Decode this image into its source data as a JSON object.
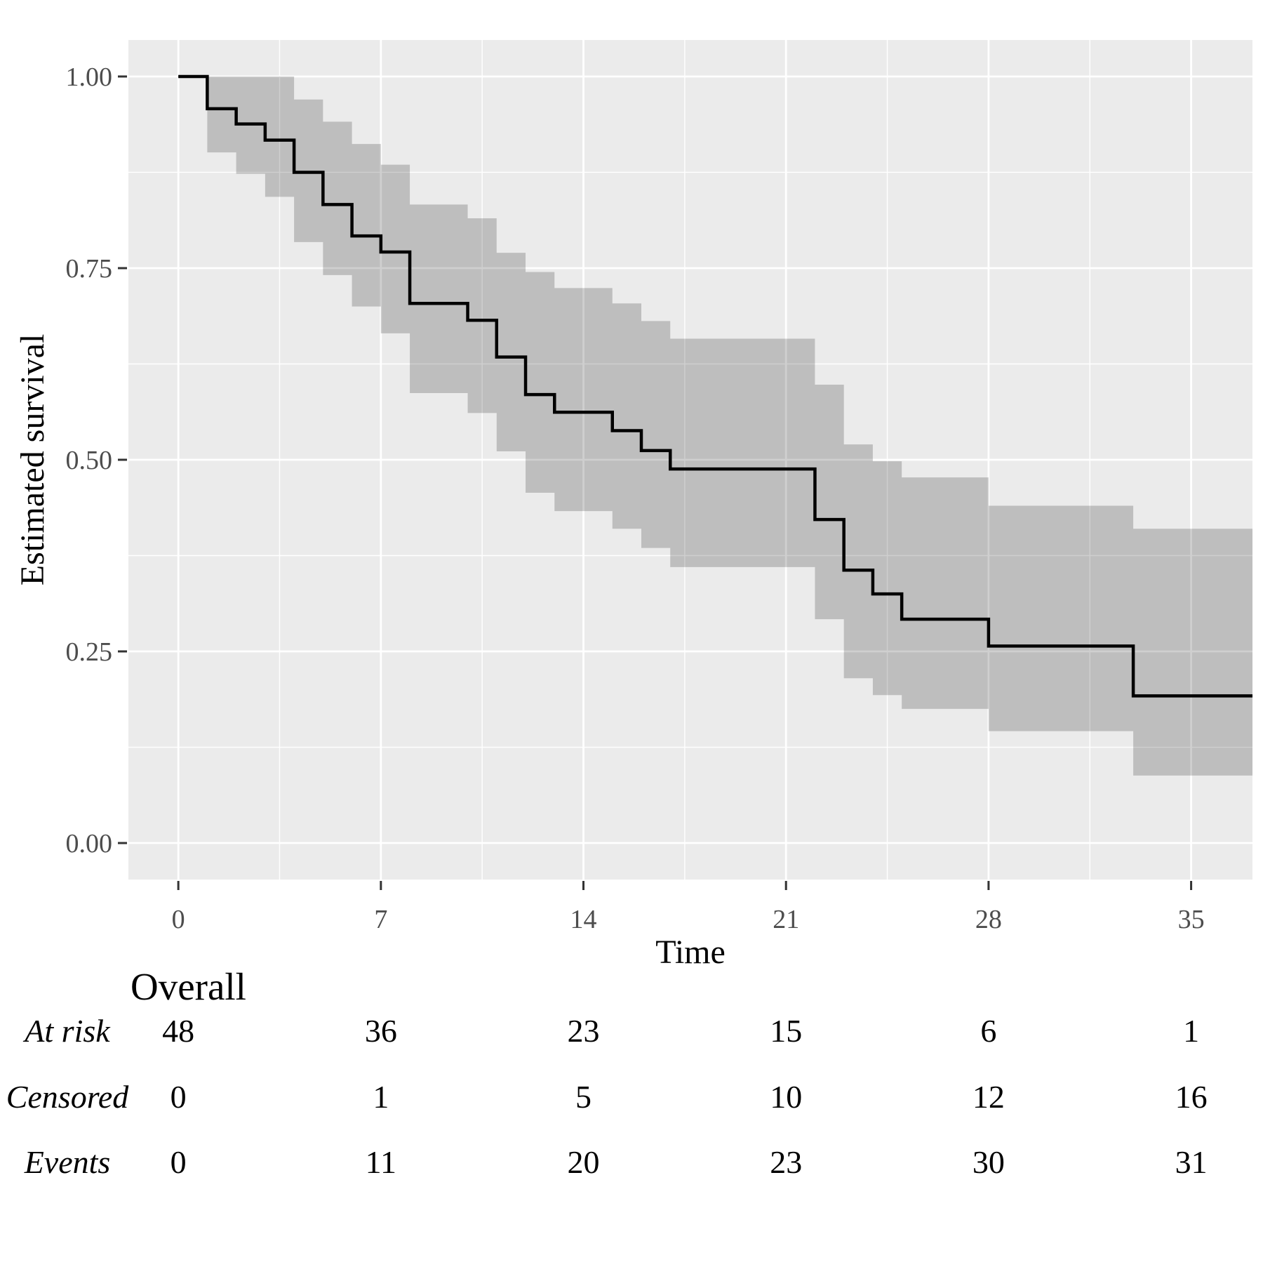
{
  "chart_data": {
    "type": "line",
    "subtype": "kaplan-meier-step",
    "title": "",
    "xlabel": "Time",
    "ylabel": "Estimated survival",
    "xlim": [
      -1.725,
      37.12
    ],
    "ylim": [
      -0.0476,
      1.0476
    ],
    "x_ticks": [
      0,
      7,
      14,
      21,
      28,
      35
    ],
    "x_tick_labels": [
      "0",
      "7",
      "14",
      "21",
      "28",
      "35"
    ],
    "y_ticks": [
      1.0,
      0.75,
      0.5,
      0.25,
      0.0
    ],
    "y_tick_labels": [
      "1.00",
      "0.75",
      "0.50",
      "0.25",
      "0.00"
    ],
    "x_minor_gridlines": [
      3.5,
      10.5,
      17.5,
      24.5,
      31.5
    ],
    "y_minor_gridlines": [
      0.875,
      0.625,
      0.375,
      0.125
    ],
    "grid": "on",
    "legend": "none",
    "curve_end_time": 37.12,
    "series": [
      {
        "name": "Overall",
        "steps": [
          {
            "t": 0,
            "s": 1.0,
            "lo": null,
            "hi": null
          },
          {
            "t": 1,
            "s": 0.958,
            "lo": 0.901,
            "hi": 1.0
          },
          {
            "t": 2,
            "s": 0.938,
            "lo": 0.873,
            "hi": 1.0
          },
          {
            "t": 3,
            "s": 0.917,
            "lo": 0.843,
            "hi": 1.0
          },
          {
            "t": 4,
            "s": 0.875,
            "lo": 0.784,
            "hi": 0.97
          },
          {
            "t": 5,
            "s": 0.833,
            "lo": 0.741,
            "hi": 0.941
          },
          {
            "t": 6,
            "s": 0.792,
            "lo": 0.7,
            "hi": 0.912
          },
          {
            "t": 7,
            "s": 0.771,
            "lo": 0.665,
            "hi": 0.885
          },
          {
            "t": 8,
            "s": 0.704,
            "lo": 0.587,
            "hi": 0.833
          },
          {
            "t": 10,
            "s": 0.682,
            "lo": 0.561,
            "hi": 0.815
          },
          {
            "t": 11,
            "s": 0.634,
            "lo": 0.511,
            "hi": 0.77
          },
          {
            "t": 12,
            "s": 0.585,
            "lo": 0.457,
            "hi": 0.745
          },
          {
            "t": 13,
            "s": 0.562,
            "lo": 0.433,
            "hi": 0.724
          },
          {
            "t": 15,
            "s": 0.538,
            "lo": 0.41,
            "hi": 0.704
          },
          {
            "t": 16,
            "s": 0.512,
            "lo": 0.385,
            "hi": 0.681
          },
          {
            "t": 17,
            "s": 0.488,
            "lo": 0.36,
            "hi": 0.658
          },
          {
            "t": 22,
            "s": 0.422,
            "lo": 0.292,
            "hi": 0.598
          },
          {
            "t": 23,
            "s": 0.356,
            "lo": 0.215,
            "hi": 0.52
          },
          {
            "t": 24,
            "s": 0.325,
            "lo": 0.193,
            "hi": 0.498
          },
          {
            "t": 25,
            "s": 0.292,
            "lo": 0.175,
            "hi": 0.477
          },
          {
            "t": 28,
            "s": 0.257,
            "lo": 0.146,
            "hi": 0.44
          },
          {
            "t": 33,
            "s": 0.192,
            "lo": 0.088,
            "hi": 0.41
          }
        ]
      }
    ],
    "colors": {
      "panel_background": "#EBEBEB",
      "gridline": "#FFFFFF",
      "confidence_band": "rgba(0,0,0,0.19)",
      "curve": "#000000",
      "tick_label": "#4D4D4D",
      "tick_mark": "#333333"
    }
  },
  "risk_table": {
    "header": "Overall",
    "time_points": [
      0,
      7,
      14,
      21,
      28,
      35
    ],
    "rows": [
      {
        "label": "At risk",
        "values": [
          "48",
          "36",
          "23",
          "15",
          "6",
          "1"
        ]
      },
      {
        "label": "Censored",
        "values": [
          "0",
          "1",
          "5",
          "10",
          "12",
          "16"
        ]
      },
      {
        "label": "Events",
        "values": [
          "0",
          "11",
          "20",
          "23",
          "30",
          "31"
        ]
      }
    ]
  }
}
